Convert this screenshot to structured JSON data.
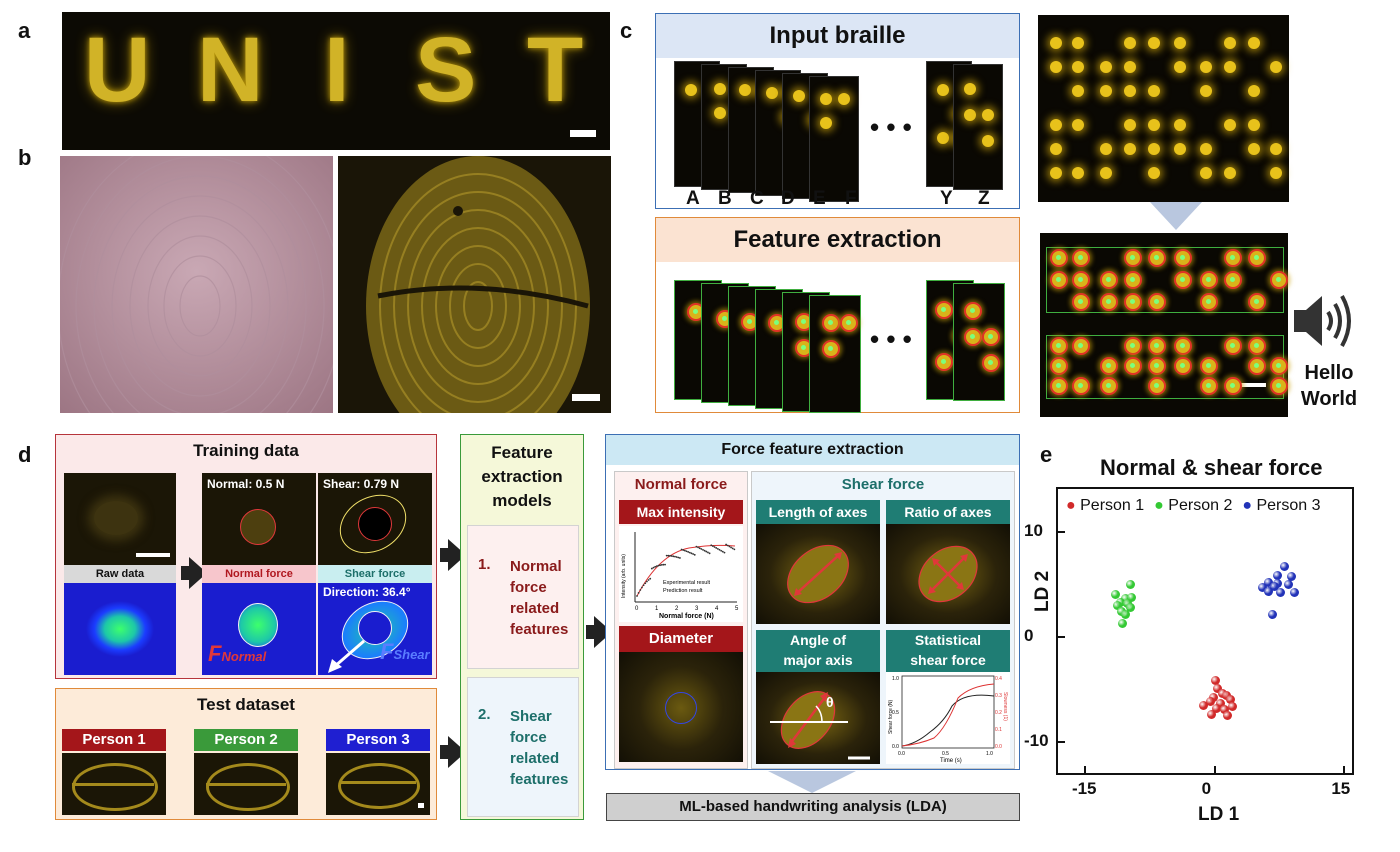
{
  "panel_labels": {
    "a": "a",
    "b": "b",
    "c": "c",
    "d": "d",
    "e": "e"
  },
  "panel_a": {
    "letters": [
      "U",
      "N",
      "I",
      "S",
      "T"
    ]
  },
  "panel_c": {
    "input_title": "Input braille",
    "feature_title": "Feature extraction",
    "letters_left": [
      "A",
      "B",
      "C",
      "D",
      "E",
      "F"
    ],
    "ellipsis": "• • •",
    "letters_right": [
      "Y",
      "Z"
    ],
    "output_text_line1": "Hello",
    "output_text_line2": "World"
  },
  "panel_d": {
    "training_title": "Training data",
    "normal_value": "Normal: 0.5 N",
    "shear_value": "Shear: 0.79 N",
    "raw_label": "Raw data",
    "normal_label": "Normal force",
    "shear_label": "Shear force",
    "direction": "Direction: 36.4°",
    "f_normal_main": "F",
    "f_normal_sub": "Normal",
    "f_shear_main": "F",
    "f_shear_sub": "Shear",
    "test_title": "Test dataset",
    "persons": [
      "Person 1",
      "Person 2",
      "Person 3"
    ],
    "models_title_lines": [
      "Feature",
      "extraction",
      "models"
    ],
    "model1_num": "1.",
    "model1_lines": [
      "Normal",
      "force",
      "related",
      "features"
    ],
    "model2_num": "2.",
    "model2_lines": [
      "Shear",
      "force",
      "related",
      "features"
    ],
    "ffe_title": "Force feature extraction",
    "normal_force_head": "Normal force",
    "shear_force_head": "Shear force",
    "max_intensity": "Max intensity",
    "diameter": "Diameter",
    "length_axes": "Length of axes",
    "ratio_axes": "Ratio of axes",
    "angle_lines": [
      "Angle of",
      "major axis"
    ],
    "stat_lines": [
      "Statistical",
      "shear force"
    ],
    "theta": "θ",
    "mini_plot": {
      "ylabel": "Intensity (arb. units)",
      "xlabel": "Normal force (N)",
      "legend1": "Experimental result",
      "legend2": "Prediction result",
      "xticks": [
        "0",
        "1",
        "2",
        "3",
        "4",
        "5"
      ]
    },
    "stat_plot": {
      "ylabel_left": "Shear force (N)",
      "ylabel_right": "Slowness (1)",
      "xlabel": "Time (s)",
      "xticks": [
        "0.0",
        "0.5",
        "1.0"
      ],
      "yticks_left": [
        "0.0",
        "0.5",
        "1.0"
      ],
      "yticks_right": [
        "0.0",
        "0.1",
        "0.2",
        "0.3",
        "0.4"
      ]
    },
    "ml_label": "ML-based handwriting analysis (LDA)"
  },
  "chart_data": {
    "type": "scatter",
    "title": "Normal & shear force",
    "xlabel": "LD 1",
    "ylabel": "LD 2",
    "xlim": [
      -18,
      16
    ],
    "ylim": [
      -13,
      14
    ],
    "xticks": [
      "-15",
      "0",
      "15"
    ],
    "yticks": [
      "10",
      "0",
      "-10"
    ],
    "xtick_values": [
      -15,
      0,
      15
    ],
    "ytick_values": [
      10,
      0,
      -10
    ],
    "legend": [
      "Person 1",
      "Person 2",
      "Person 3"
    ],
    "series": [
      {
        "name": "Person 1",
        "color": "#d12a2a",
        "points": [
          [
            0.2,
            -4.2
          ],
          [
            0.5,
            -5.0
          ],
          [
            1.0,
            -5.4
          ],
          [
            0.0,
            -5.8
          ],
          [
            1.5,
            -5.6
          ],
          [
            -0.4,
            -6.2
          ],
          [
            0.8,
            -6.4
          ],
          [
            1.9,
            -6.0
          ],
          [
            -1.2,
            -6.6
          ],
          [
            0.3,
            -6.9
          ],
          [
            1.3,
            -7.0
          ],
          [
            2.2,
            -6.7
          ],
          [
            -0.2,
            -7.4
          ],
          [
            1.6,
            -7.5
          ]
        ]
      },
      {
        "name": "Person 2",
        "color": "#34c934",
        "points": [
          [
            -9.6,
            4.9
          ],
          [
            -11.4,
            4.0
          ],
          [
            -10.2,
            3.6
          ],
          [
            -9.5,
            3.7
          ],
          [
            -10.8,
            3.2
          ],
          [
            -11.1,
            2.9
          ],
          [
            -10.0,
            3.1
          ],
          [
            -9.6,
            2.7
          ],
          [
            -10.6,
            2.4
          ],
          [
            -10.2,
            2.1
          ],
          [
            -10.5,
            1.2
          ]
        ]
      },
      {
        "name": "Person 3",
        "color": "#2233b8",
        "points": [
          [
            8.2,
            6.6
          ],
          [
            7.4,
            5.8
          ],
          [
            9.0,
            5.7
          ],
          [
            6.3,
            5.1
          ],
          [
            7.4,
            5.0
          ],
          [
            8.6,
            4.9
          ],
          [
            5.6,
            4.6
          ],
          [
            7.0,
            4.7
          ],
          [
            9.3,
            4.2
          ],
          [
            6.3,
            4.3
          ],
          [
            7.7,
            4.2
          ],
          [
            6.8,
            2.1
          ]
        ]
      }
    ]
  },
  "colors": {
    "gold": "#e2c22a",
    "red_border": "#b6343b",
    "orange_border": "#e08a3a",
    "green_border": "#3a9a3a",
    "blue_border": "#3c6fb4",
    "teal_head": "#1f7d74",
    "dark_red_head": "#a4161a"
  }
}
